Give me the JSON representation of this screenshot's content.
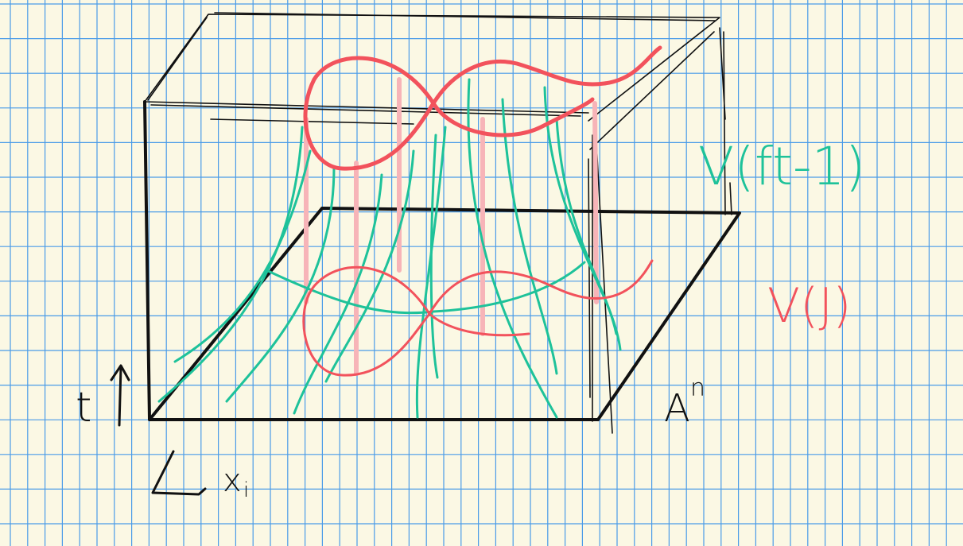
{
  "labels": {
    "v_ft": "V(ft-1)",
    "v_j": "V(J)",
    "t": "t",
    "a": "A",
    "a_sup": "n",
    "x": "x",
    "x_sub": "i"
  }
}
